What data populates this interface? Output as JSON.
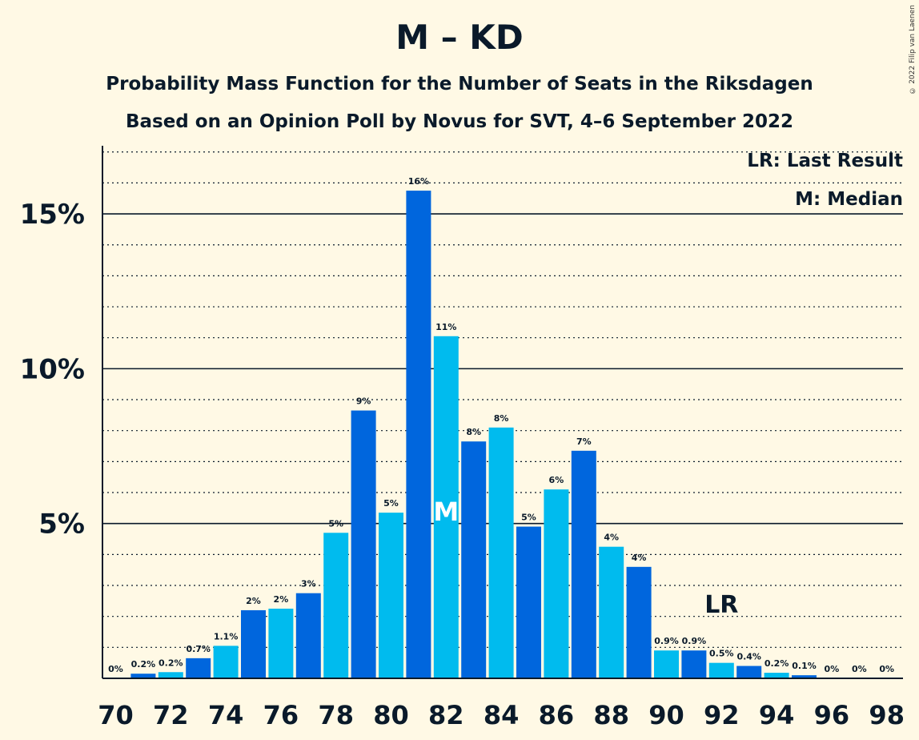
{
  "chart_data": {
    "type": "bar",
    "title": "M – KD",
    "subtitle": "Probability Mass Function for the Number of Seats in the Riksdagen",
    "subtitle2": "Based on an Opinion Poll by Novus for SVT, 4–6 September 2022",
    "copyright": "© 2022 Filip van Laenen",
    "legend": {
      "last_result": "LR: Last Result",
      "median": "M: Median",
      "placement": "top-right"
    },
    "markers": {
      "median_label": "M",
      "median_seat": 82,
      "last_result_label": "LR",
      "last_result_seat": 92
    },
    "categories": [
      70,
      71,
      72,
      73,
      74,
      75,
      76,
      77,
      78,
      79,
      80,
      81,
      82,
      83,
      84,
      85,
      86,
      87,
      88,
      89,
      90,
      91,
      92,
      93,
      94,
      95,
      96,
      97,
      98
    ],
    "values": [
      0,
      0.15,
      0.2,
      0.65,
      1.05,
      2.2,
      2.25,
      2.75,
      4.7,
      8.65,
      5.35,
      15.75,
      11.05,
      7.65,
      8.1,
      4.9,
      6.1,
      7.35,
      4.25,
      3.6,
      0.9,
      0.9,
      0.5,
      0.4,
      0.18,
      0.1,
      0,
      0,
      0
    ],
    "data_labels": [
      "0%",
      "0.2%",
      "0.2%",
      "0.7%",
      "1.1%",
      "2%",
      "2%",
      "3%",
      "5%",
      "9%",
      "5%",
      "16%",
      "11%",
      "8%",
      "8%",
      "5%",
      "6%",
      "7%",
      "4%",
      "4%",
      "0.9%",
      "0.9%",
      "0.5%",
      "0.4%",
      "0.2%",
      "0.1%",
      "0%",
      "0%",
      "0%"
    ],
    "x_tick_labels": [
      "70",
      "72",
      "74",
      "76",
      "78",
      "80",
      "82",
      "84",
      "86",
      "88",
      "90",
      "92",
      "94",
      "96",
      "98"
    ],
    "y_tick_labels": [
      "5%",
      "10%",
      "15%"
    ],
    "y_ticks": [
      5,
      10,
      15
    ],
    "y_minor_step": 1,
    "ylim": [
      0,
      17.2
    ],
    "xlim": [
      70,
      98
    ],
    "grid": true,
    "colors": {
      "dark_bar": "#0066DD",
      "light_bar": "#00BBEE",
      "background": "#FFF9E5",
      "text": "#0A1A2A"
    }
  }
}
